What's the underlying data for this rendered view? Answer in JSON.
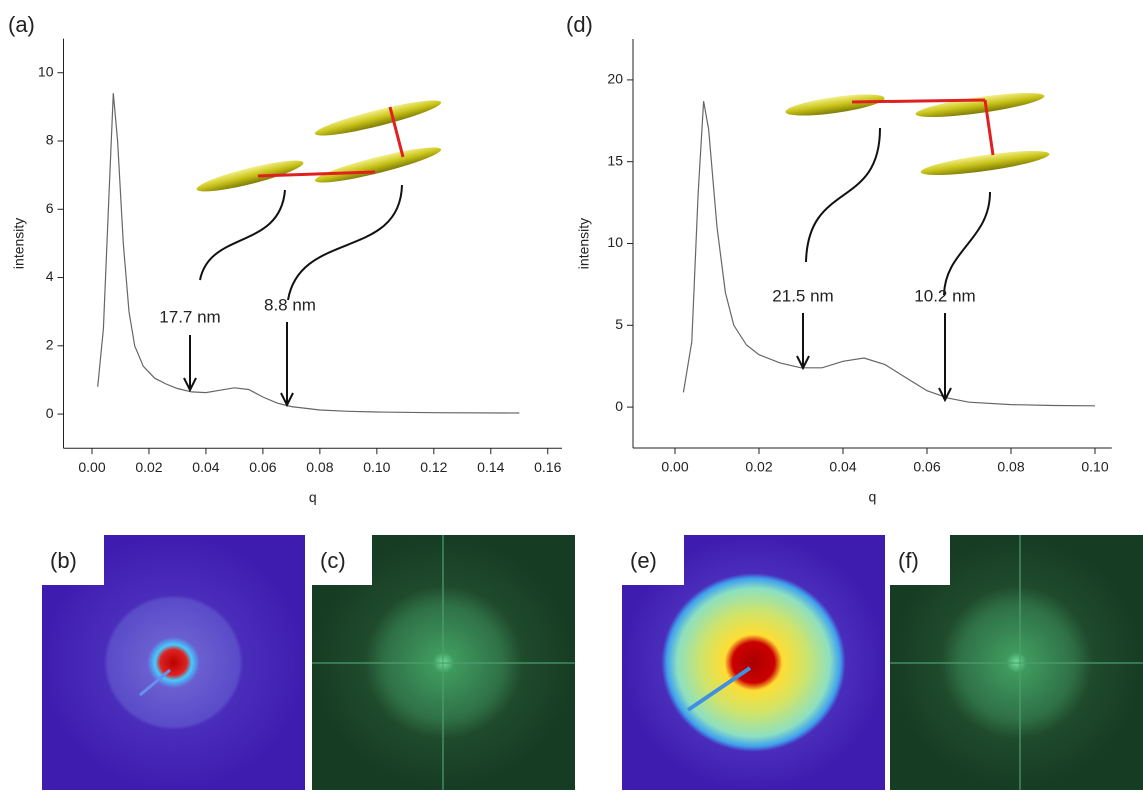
{
  "chart_data": [
    {
      "type": "line",
      "label": "(a)",
      "x_label": "q",
      "y_label": "intensity",
      "color": "#666666",
      "x": [
        0.002,
        0.004,
        0.006,
        0.0075,
        0.009,
        0.011,
        0.013,
        0.015,
        0.018,
        0.022,
        0.026,
        0.03,
        0.035,
        0.04,
        0.045,
        0.05,
        0.055,
        0.06,
        0.065,
        0.07,
        0.08,
        0.09,
        0.1,
        0.12,
        0.15
      ],
      "values": [
        0.8,
        2.5,
        6.5,
        9.4,
        8.0,
        5.0,
        3.0,
        2.0,
        1.4,
        1.05,
        0.88,
        0.75,
        0.65,
        0.63,
        0.7,
        0.77,
        0.72,
        0.5,
        0.32,
        0.22,
        0.12,
        0.08,
        0.06,
        0.04,
        0.03
      ],
      "xlim": [
        -0.01,
        0.165
      ],
      "ylim": [
        -1,
        11
      ],
      "xticks": [
        {
          "value": 0,
          "label": "0.00"
        },
        {
          "value": 0.02,
          "label": "0.02"
        },
        {
          "value": 0.04,
          "label": "0.04"
        },
        {
          "value": 0.06,
          "label": "0.06"
        },
        {
          "value": 0.08,
          "label": "0.08"
        },
        {
          "value": 0.1,
          "label": "0.10"
        },
        {
          "value": 0.12,
          "label": "0.12"
        },
        {
          "value": 0.14,
          "label": "0.14"
        },
        {
          "value": 0.16,
          "label": "0.16"
        }
      ],
      "yticks": [
        0,
        2,
        4,
        6,
        8,
        10
      ],
      "annotations": [
        "17.7 nm",
        "8.8 nm"
      ]
    },
    {
      "type": "line",
      "label": "(d)",
      "x_label": "q",
      "y_label": "intensity",
      "color": "#666666",
      "x": [
        0.002,
        0.004,
        0.0055,
        0.0068,
        0.008,
        0.01,
        0.012,
        0.014,
        0.017,
        0.02,
        0.025,
        0.03,
        0.035,
        0.04,
        0.045,
        0.05,
        0.055,
        0.06,
        0.065,
        0.07,
        0.08,
        0.09,
        0.1
      ],
      "values": [
        0.9,
        4,
        13,
        18.7,
        17,
        11,
        7,
        5,
        3.8,
        3.2,
        2.7,
        2.4,
        2.4,
        2.8,
        3.0,
        2.6,
        1.8,
        1.0,
        0.55,
        0.3,
        0.15,
        0.1,
        0.08
      ],
      "xlim": [
        -0.01,
        0.104
      ],
      "ylim": [
        -2.5,
        22.5
      ],
      "xticks": [
        {
          "value": 0,
          "label": "0.00"
        },
        {
          "value": 0.02,
          "label": "0.02"
        },
        {
          "value": 0.04,
          "label": "0.04"
        },
        {
          "value": 0.06,
          "label": "0.06"
        },
        {
          "value": 0.08,
          "label": "0.08"
        },
        {
          "value": 0.1,
          "label": "0.10"
        }
      ],
      "yticks": [
        0,
        5,
        10,
        15,
        20
      ],
      "annotations": [
        "21.5 nm",
        "10.2 nm"
      ]
    }
  ],
  "panels": [
    "(b)",
    "(c)",
    "(e)",
    "(f)"
  ]
}
